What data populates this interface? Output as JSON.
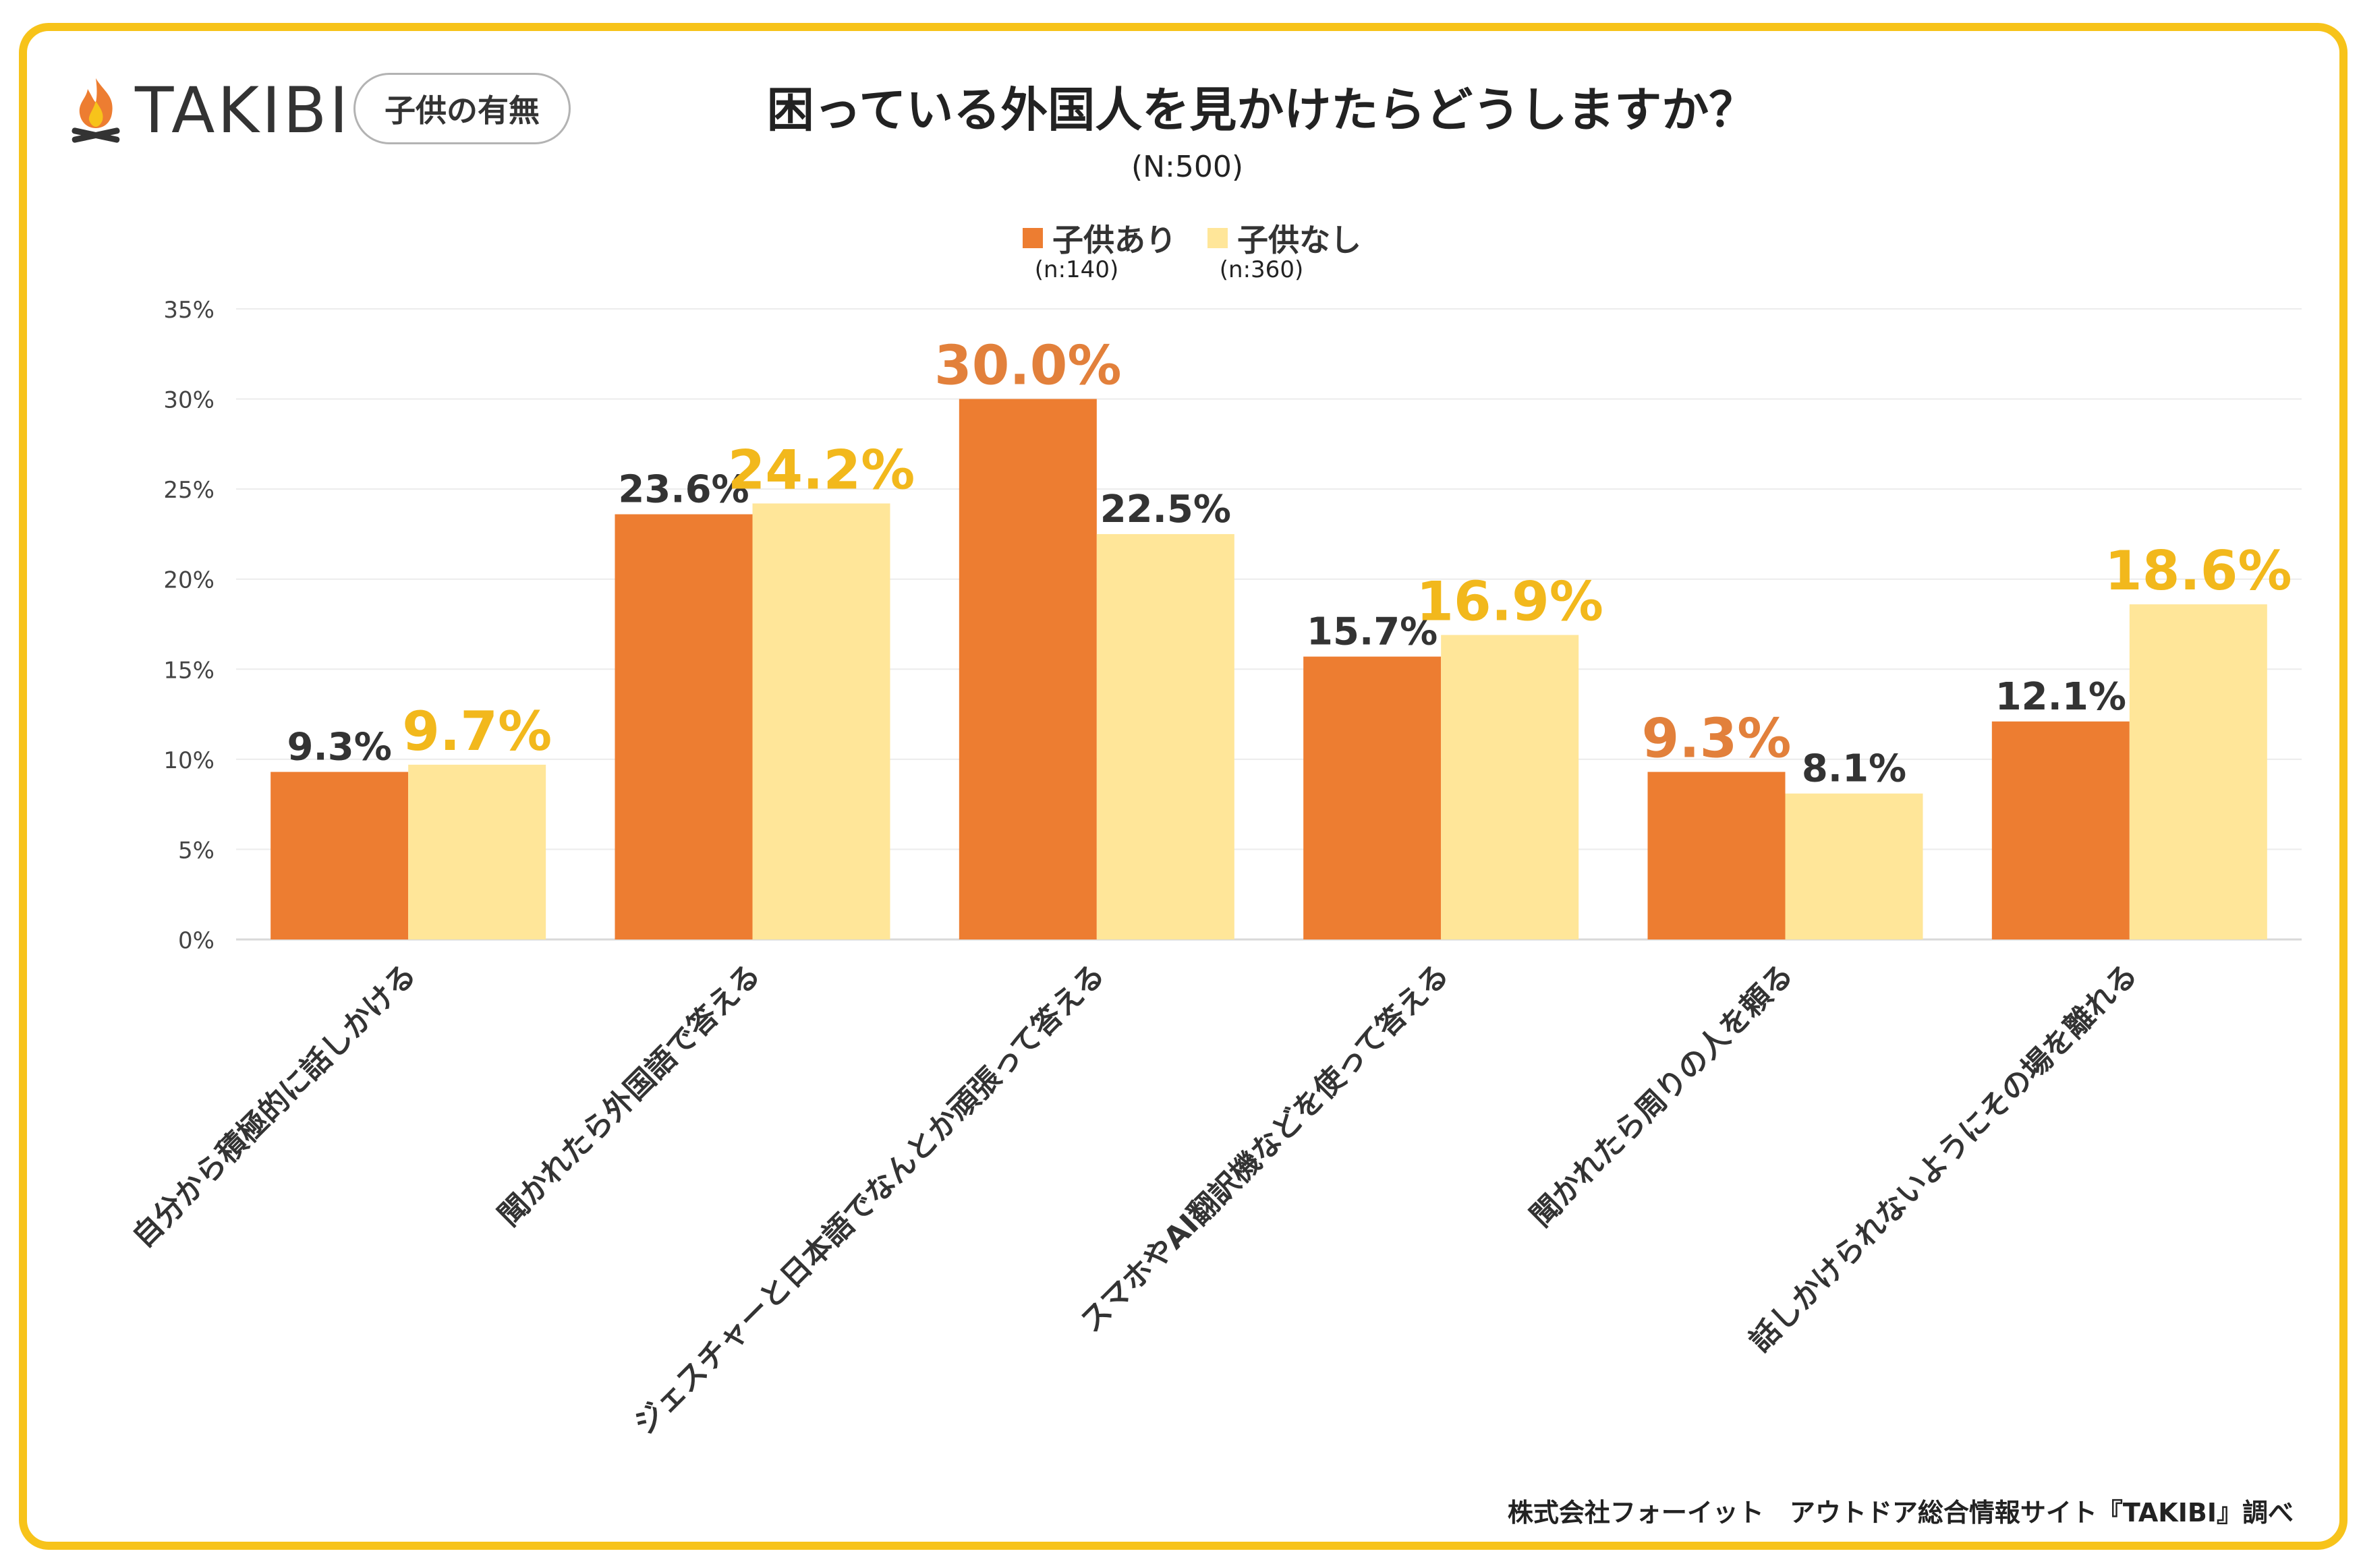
{
  "header": {
    "brand": "TAKIBI",
    "tag": "子供の有無",
    "title": "困っている外国人を見かけたらどうしますか？",
    "subtitle": "(N:500)"
  },
  "legend": [
    {
      "label": "子供あり",
      "n": "(n:140)",
      "color": "#ed7d31"
    },
    {
      "label": "子供なし",
      "n": "(n:360)",
      "color": "#ffe699"
    }
  ],
  "highlight_colors": {
    "orange": "#e2803b",
    "gold": "#f2b81c",
    "normal": "#333333"
  },
  "chart_data": {
    "type": "bar",
    "title": "困っている外国人を見かけたらどうしますか？",
    "categories": [
      "自分から積極的に話しかける",
      "聞かれたら外国語で答える",
      "ジェスチャーと日本語でなんとか頑張って答える",
      "スマホやAI翻訳機などを使って答える",
      "聞かれたら周りの人を頼る",
      "話しかけられないようにその場を離れる"
    ],
    "series": [
      {
        "name": "子供あり",
        "values": [
          9.3,
          23.6,
          30.0,
          15.7,
          9.3,
          12.1
        ],
        "labels": [
          "9.3%",
          "23.6%",
          "30.0%",
          "15.7%",
          "9.3%",
          "12.1%"
        ],
        "highlight": [
          false,
          false,
          true,
          false,
          true,
          false
        ]
      },
      {
        "name": "子供なし",
        "values": [
          9.7,
          24.2,
          22.5,
          16.9,
          8.1,
          18.6
        ],
        "labels": [
          "9.7%",
          "24.2%",
          "22.5%",
          "16.9%",
          "8.1%",
          "18.6%"
        ],
        "highlight": [
          true,
          true,
          false,
          true,
          false,
          true
        ]
      }
    ],
    "ylim": [
      0,
      35
    ],
    "yticks": [
      "0%",
      "5%",
      "10%",
      "15%",
      "20%",
      "25%",
      "30%",
      "35%"
    ],
    "grid": true,
    "xlabel": "",
    "ylabel": ""
  },
  "footer": "株式会社フォーイット　アウトドア総合情報サイト『TAKIBI』調べ"
}
